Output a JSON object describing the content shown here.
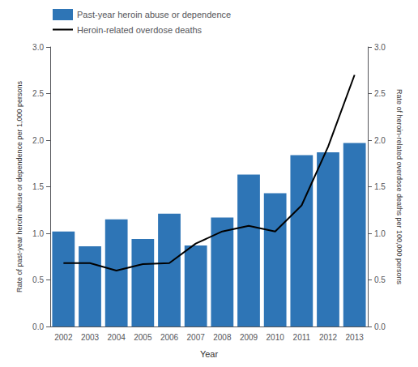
{
  "chart_data": {
    "type": "bar",
    "xlabel": "Year",
    "ylabel": "Rate of past-year heroin abuse or dependence per 1,000 persons",
    "y2label": "Rate of heroin-related overdose deaths per 100,000 persons",
    "categories": [
      "2002",
      "2003",
      "2004",
      "2005",
      "2006",
      "2007",
      "2008",
      "2009",
      "2010",
      "2011",
      "2012",
      "2013"
    ],
    "series": [
      {
        "name": "Past-year heroin abuse or dependence",
        "type": "bar",
        "color": "#2E75B6",
        "values": [
          1.02,
          0.86,
          1.15,
          0.94,
          1.21,
          0.87,
          1.17,
          1.63,
          1.43,
          1.84,
          1.87,
          1.97
        ]
      },
      {
        "name": "Heroin-related overdose deaths",
        "type": "line",
        "color": "#000000",
        "axis": "y2",
        "values": [
          0.68,
          0.68,
          0.6,
          0.67,
          0.68,
          0.89,
          1.02,
          1.08,
          1.02,
          1.3,
          1.93,
          2.7
        ]
      }
    ],
    "ylim": [
      0.0,
      3.0
    ],
    "yticks": [
      {
        "value": 0.0,
        "label": "0.0"
      },
      {
        "value": 0.5,
        "label": "0.5"
      },
      {
        "value": 1.0,
        "label": "1.0"
      },
      {
        "value": 1.5,
        "label": "1.5"
      },
      {
        "value": 2.0,
        "label": "2.0"
      },
      {
        "value": 2.5,
        "label": "2.5"
      },
      {
        "value": 3.0,
        "label": "3.0"
      }
    ],
    "y2lim": [
      0.0,
      3.0
    ],
    "y2ticks": [
      {
        "value": 0.0,
        "label": "0.0"
      },
      {
        "value": 0.5,
        "label": "0.5"
      },
      {
        "value": 1.0,
        "label": "1.0"
      },
      {
        "value": 1.5,
        "label": "1.5"
      },
      {
        "value": 2.0,
        "label": "2.0"
      },
      {
        "value": 2.5,
        "label": "2.5"
      },
      {
        "value": 3.0,
        "label": "3.0"
      }
    ],
    "grid": false,
    "legend": "upper left"
  }
}
